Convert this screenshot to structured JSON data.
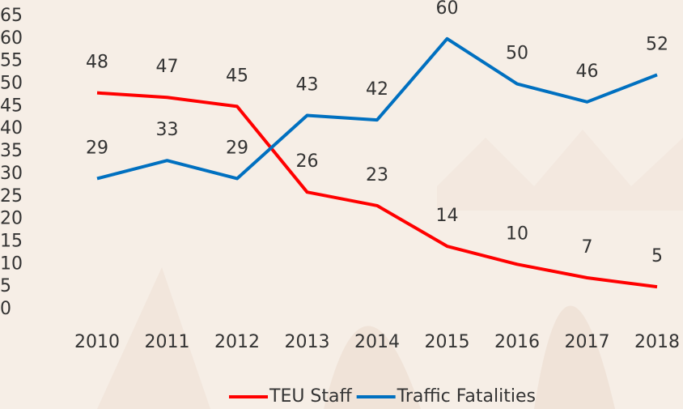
{
  "chart_data": {
    "type": "line",
    "categories": [
      "2010",
      "2011",
      "2012",
      "2013",
      "2014",
      "2015",
      "2016",
      "2017",
      "2018"
    ],
    "series": [
      {
        "name": "TEU Staff",
        "color": "#ff0000",
        "values": [
          48,
          47,
          45,
          26,
          23,
          14,
          10,
          7,
          5
        ]
      },
      {
        "name": "Traffic Fatalities",
        "color": "#0070c0",
        "values": [
          29,
          33,
          29,
          43,
          42,
          60,
          50,
          46,
          52
        ]
      }
    ],
    "ylim": [
      0,
      65
    ],
    "yticks": [
      0,
      5,
      10,
      15,
      20,
      25,
      30,
      35,
      40,
      45,
      50,
      55,
      60,
      65
    ],
    "grid": false,
    "legend": "bottom",
    "data_labels": true
  }
}
